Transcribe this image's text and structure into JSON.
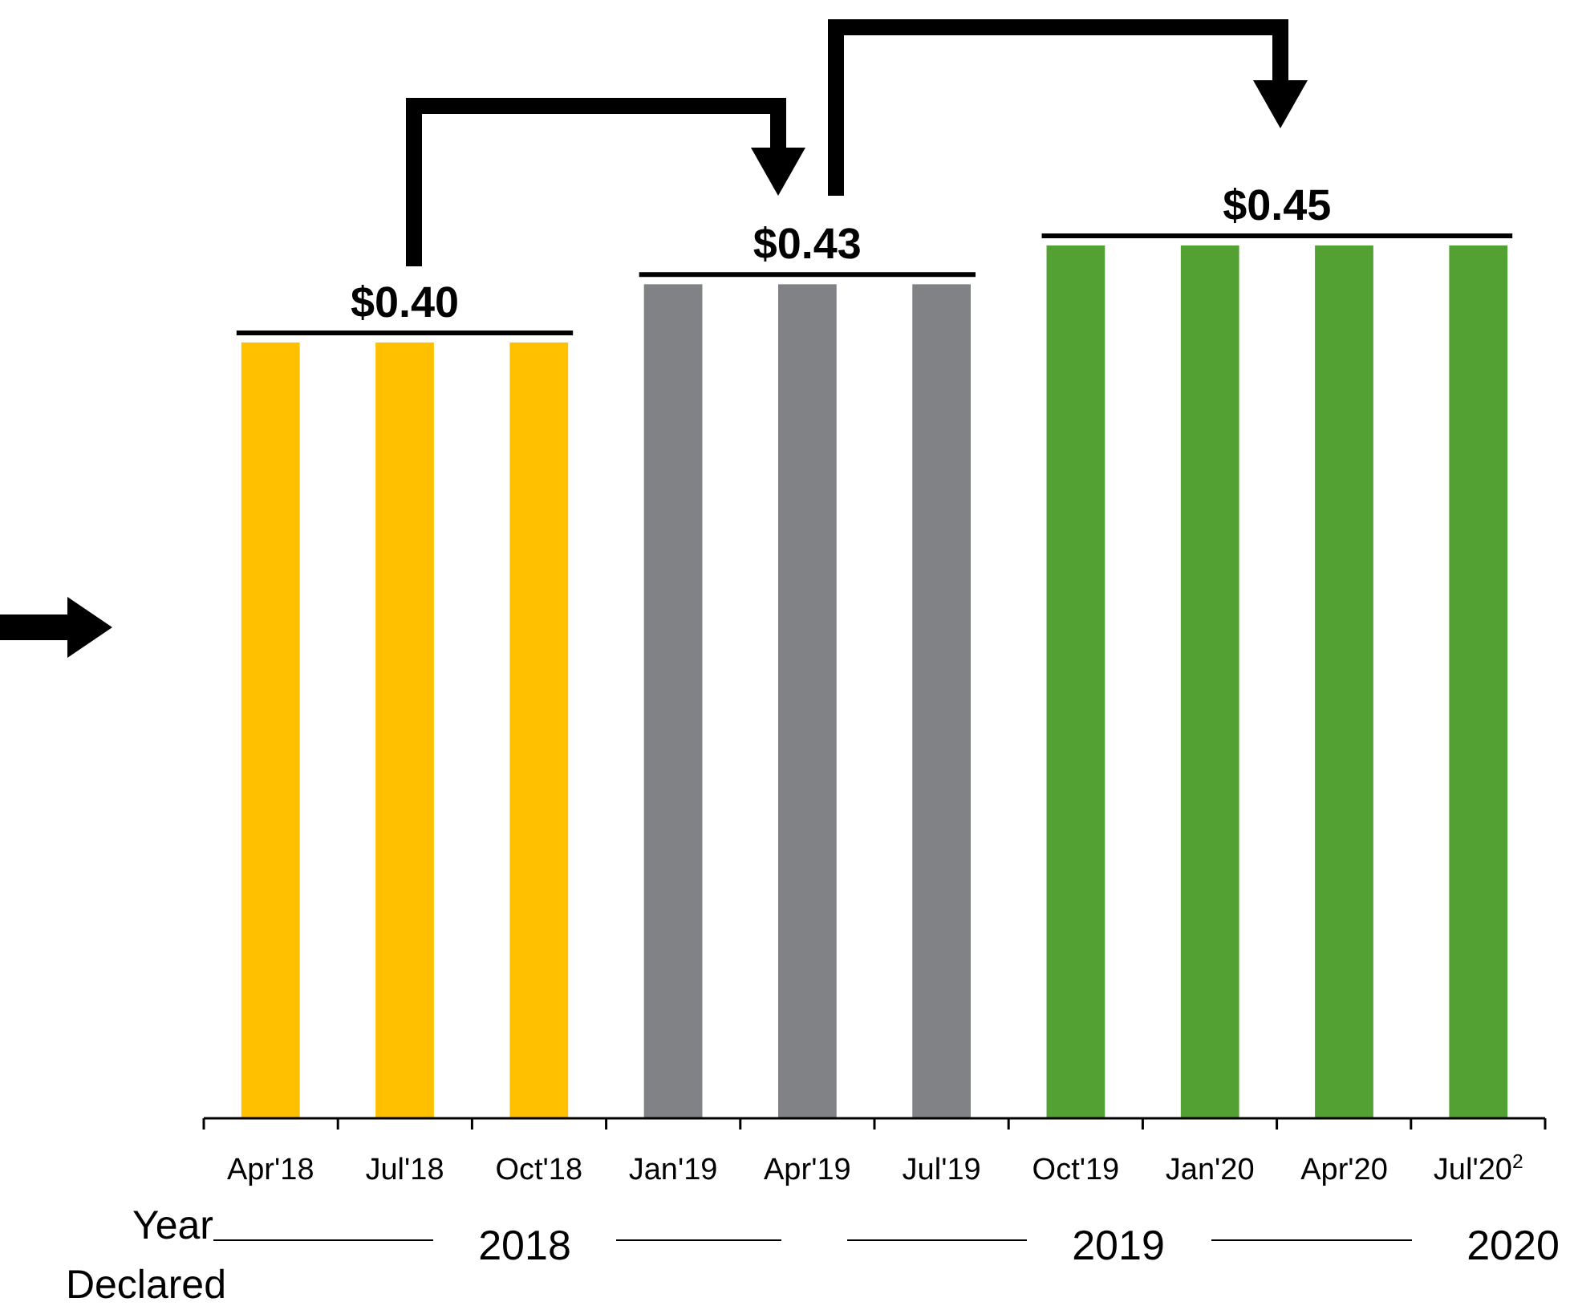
{
  "chart_data": {
    "type": "bar",
    "categories": [
      "Apr'18",
      "Jul'18",
      "Oct'18",
      "Jan'19",
      "Apr'19",
      "Jul'19",
      "Oct'19",
      "Jan'20",
      "Apr'20",
      "Jul'20$^{2}$"
    ],
    "values": [
      0.4,
      0.4,
      0.4,
      0.43,
      0.43,
      0.43,
      0.45,
      0.45,
      0.45,
      0.45
    ],
    "colors": [
      "#ffc000",
      "#ffc000",
      "#ffc000",
      "#808285",
      "#808285",
      "#808285",
      "#54a133",
      "#54a133",
      "#54a133",
      "#54a133"
    ],
    "value_labels": [
      null,
      "$0.40",
      null,
      null,
      "$0.43",
      null,
      null,
      "$0.45",
      null,
      null
    ],
    "annotations": [
      "Year Declared",
      "2018",
      "2019",
      "2020"
    ]
  }
}
